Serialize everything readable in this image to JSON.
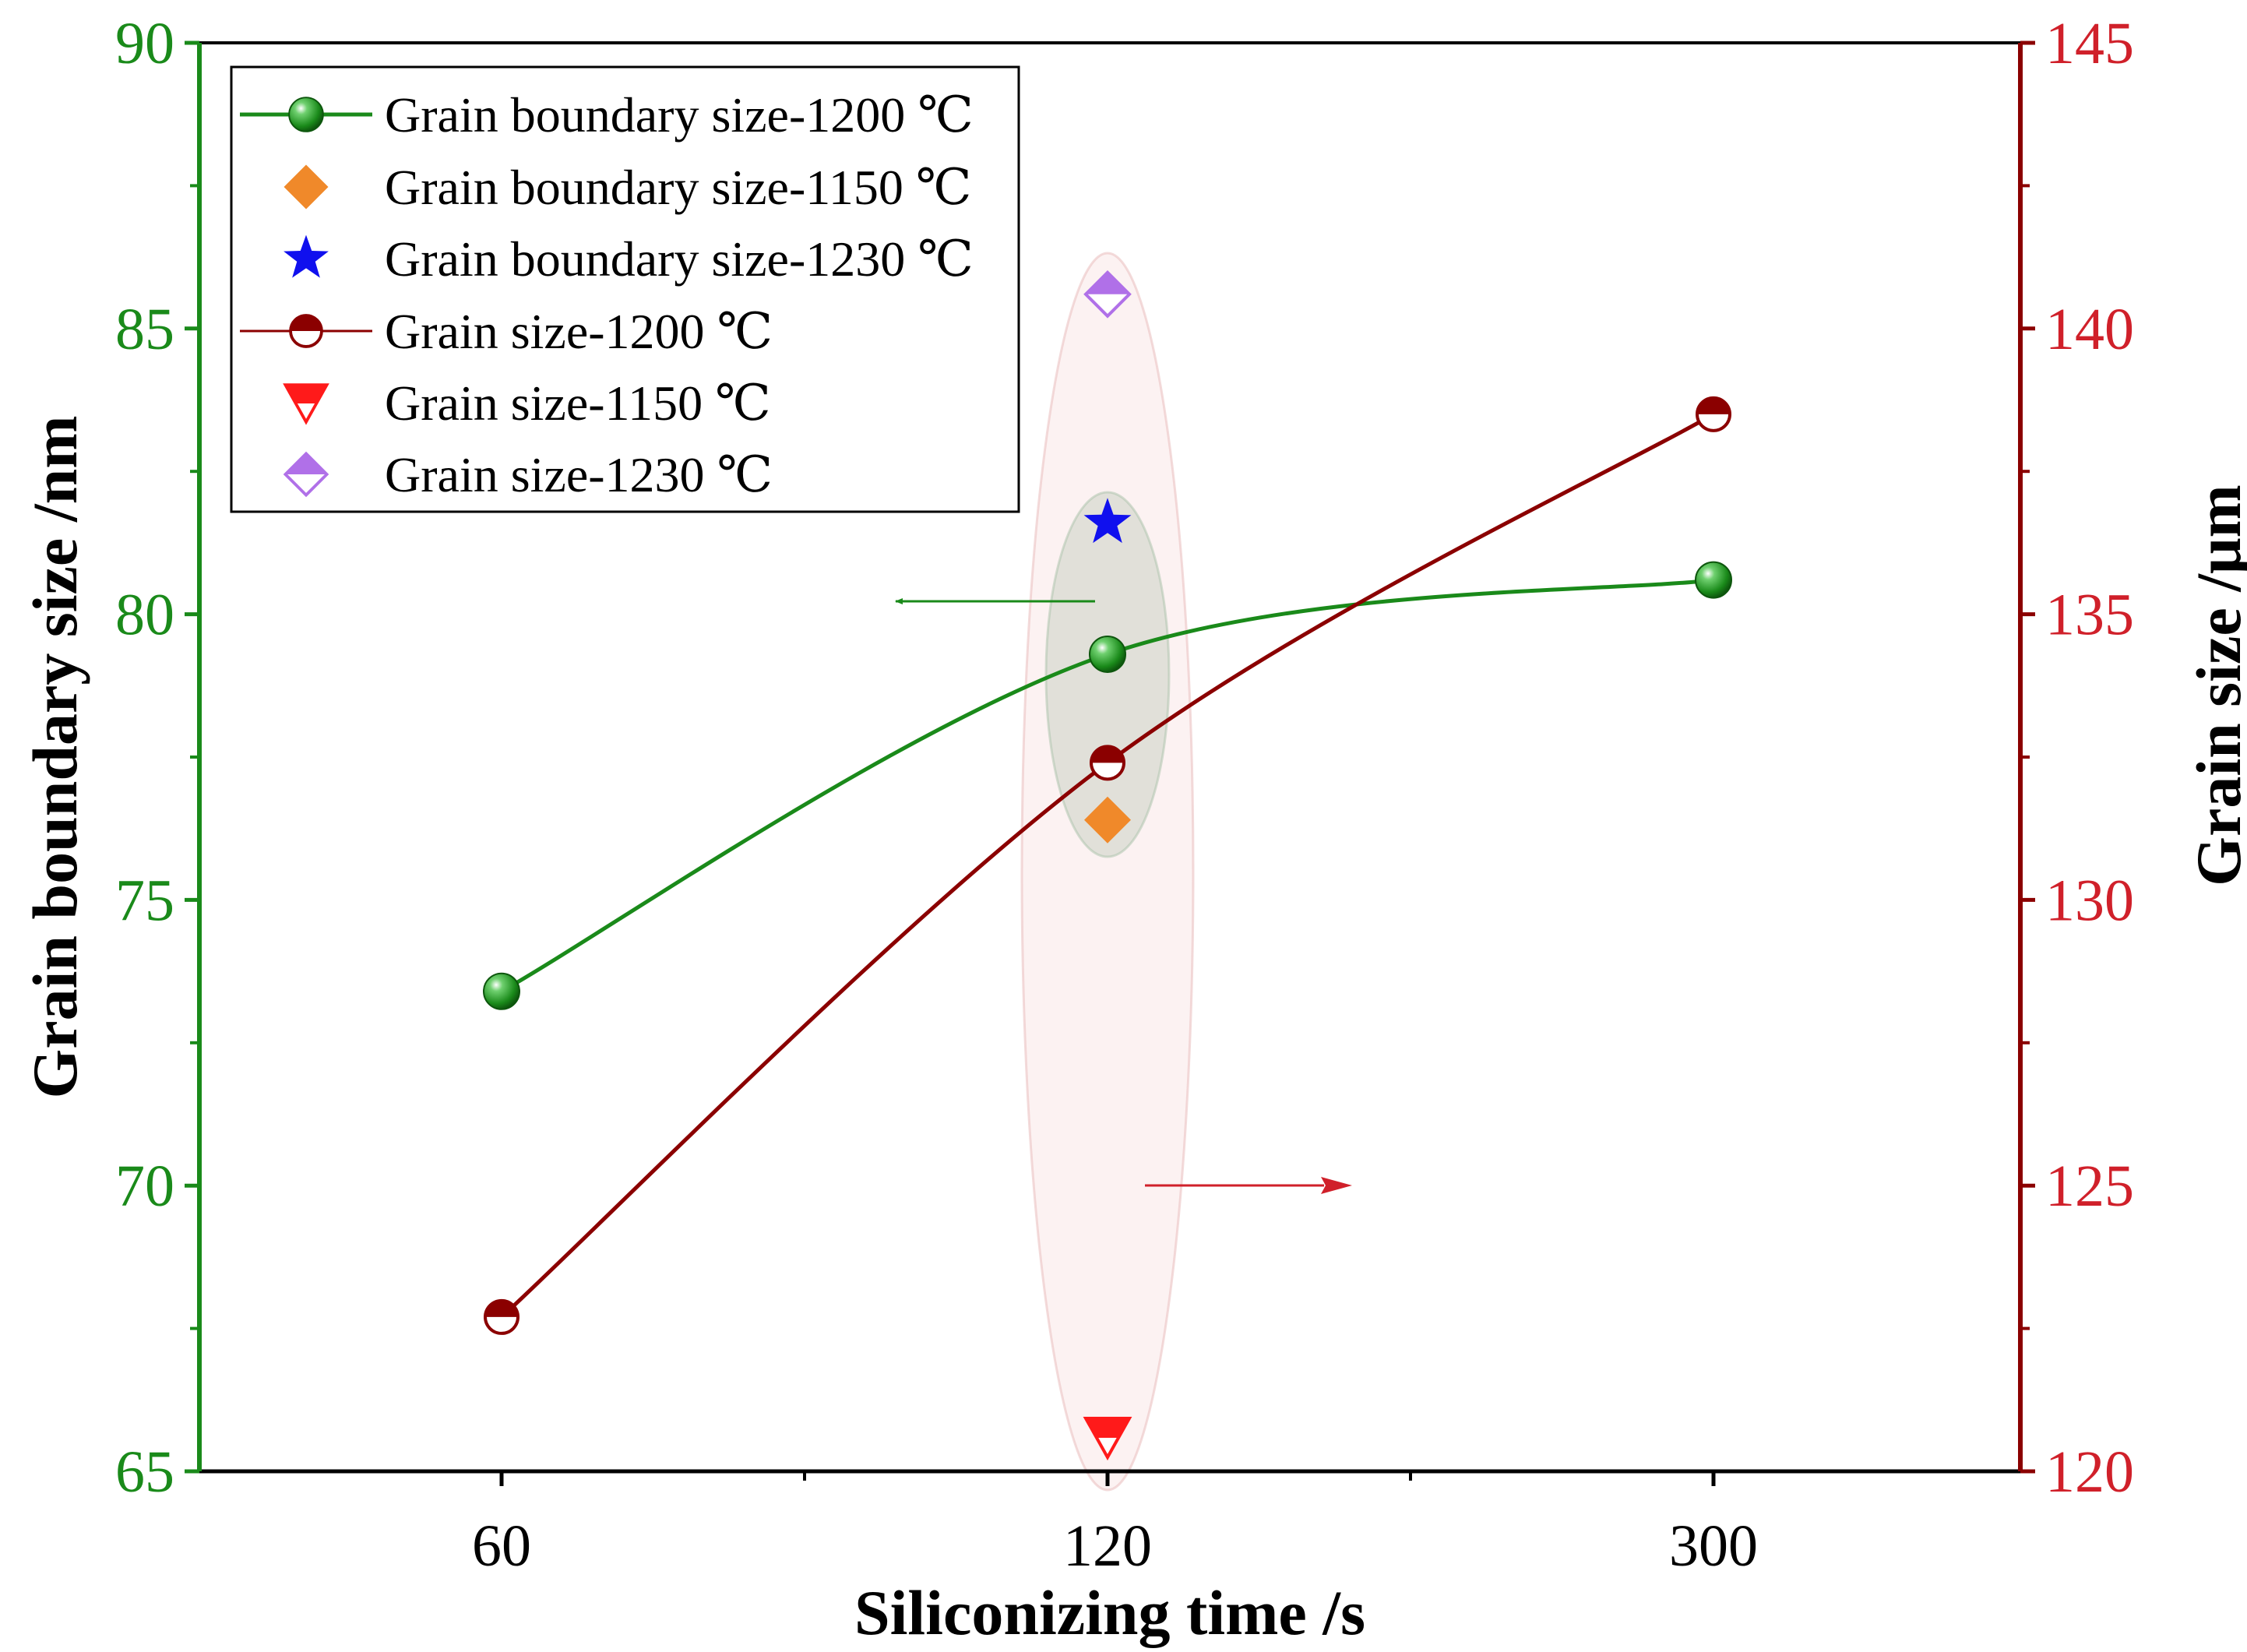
{
  "chart_data": {
    "type": "line",
    "categories": [
      "60",
      "120",
      "300"
    ],
    "xlabel": "Siliconizing time /s",
    "ylabel_left": "Grain boundary size /nm",
    "ylabel_right": "Grain size /μm",
    "ylim_left": [
      65,
      90
    ],
    "ylim_right": [
      120,
      145
    ],
    "yticks_left": [
      "65",
      "70",
      "75",
      "80",
      "85",
      "90"
    ],
    "yticks_right": [
      "120",
      "125",
      "130",
      "135",
      "140",
      "145"
    ],
    "legend_position": "top-left",
    "colors": {
      "left_axis": "#1a8a1a",
      "right_axis": "#8b0000",
      "right_tick_labels": "#d0202a"
    },
    "series": [
      {
        "name": "Grain boundary size-1200 ℃",
        "axis": "left",
        "marker": "sphere",
        "line": true,
        "color": "#1a8a1a",
        "points": [
          [
            "60",
            73.4
          ],
          [
            "120",
            79.3
          ],
          [
            "300",
            80.6
          ]
        ]
      },
      {
        "name": "Grain boundary size-1150 ℃",
        "axis": "left",
        "marker": "diamond-filled",
        "line": false,
        "color": "#f0892a",
        "points": [
          [
            "120",
            76.4
          ]
        ]
      },
      {
        "name": "Grain boundary size-1230 ℃",
        "axis": "left",
        "marker": "star",
        "line": false,
        "color": "#1010ee",
        "points": [
          [
            "120",
            81.6
          ]
        ]
      },
      {
        "name": "Grain size-1200 ℃",
        "axis": "right",
        "marker": "half-circle",
        "line": true,
        "color": "#8b0000",
        "points": [
          [
            "60",
            122.7
          ],
          [
            "120",
            132.4
          ],
          [
            "300",
            138.5
          ]
        ]
      },
      {
        "name": "Grain size-1150 ℃",
        "axis": "right",
        "marker": "half-triangle-down",
        "line": false,
        "color": "#ff1a1a",
        "points": [
          [
            "120",
            120.6
          ]
        ]
      },
      {
        "name": "Grain size-1230 ℃",
        "axis": "right",
        "marker": "half-diamond",
        "line": false,
        "color": "#b070e8",
        "points": [
          [
            "120",
            140.6
          ]
        ]
      }
    ]
  }
}
